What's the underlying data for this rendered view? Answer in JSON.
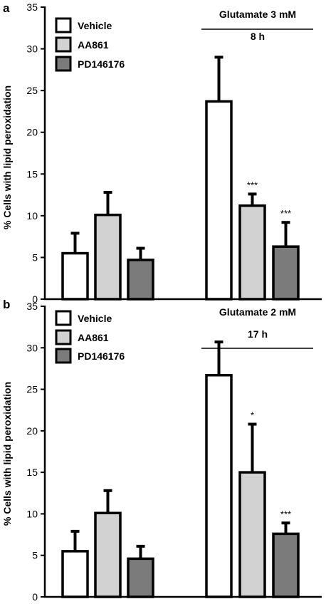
{
  "colors": {
    "Vehicle": "#ffffff",
    "AA861": "#d2d2d2",
    "PD146176": "#7b7b7b",
    "axis": "#000000"
  },
  "chart_data": [
    {
      "panel": "a",
      "type": "bar",
      "ylabel": "% Cells with lipid peroxidation",
      "ylim": [
        0,
        35
      ],
      "yticks": [
        0,
        5,
        10,
        15,
        20,
        25,
        30,
        35
      ],
      "legend": "top-left",
      "groups": [
        "",
        "Glutamate 3 mM 8 h"
      ],
      "condition": {
        "line1": "Glutamate 3 mM",
        "line2": "8 h"
      },
      "series": [
        {
          "name": "Vehicle",
          "values": [
            5.5,
            23.7
          ],
          "errors": [
            2.4,
            5.3
          ],
          "sig": [
            "",
            ""
          ]
        },
        {
          "name": "AA861",
          "values": [
            10.1,
            11.2
          ],
          "errors": [
            2.7,
            1.4
          ],
          "sig": [
            "",
            "***"
          ]
        },
        {
          "name": "PD146176",
          "values": [
            4.7,
            6.3
          ],
          "errors": [
            1.4,
            2.9
          ],
          "sig": [
            "",
            "***"
          ]
        }
      ]
    },
    {
      "panel": "b",
      "type": "bar",
      "ylabel": "% Cells with lipid peroxidation",
      "ylim": [
        0,
        35
      ],
      "yticks": [
        0,
        5,
        10,
        15,
        20,
        25,
        30,
        35
      ],
      "legend": "top-left",
      "groups": [
        "",
        "Glutamate 2 mM 17 h"
      ],
      "condition": {
        "line1": "Glutamate 2 mM",
        "line2": "17 h"
      },
      "series": [
        {
          "name": "Vehicle",
          "values": [
            5.5,
            26.7
          ],
          "errors": [
            2.4,
            4.0
          ],
          "sig": [
            "",
            ""
          ]
        },
        {
          "name": "AA861",
          "values": [
            10.1,
            15.0
          ],
          "errors": [
            2.7,
            5.8
          ],
          "sig": [
            "",
            "*"
          ]
        },
        {
          "name": "PD146176",
          "values": [
            4.6,
            7.6
          ],
          "errors": [
            1.5,
            1.3
          ],
          "sig": [
            "",
            "***"
          ]
        }
      ]
    }
  ]
}
